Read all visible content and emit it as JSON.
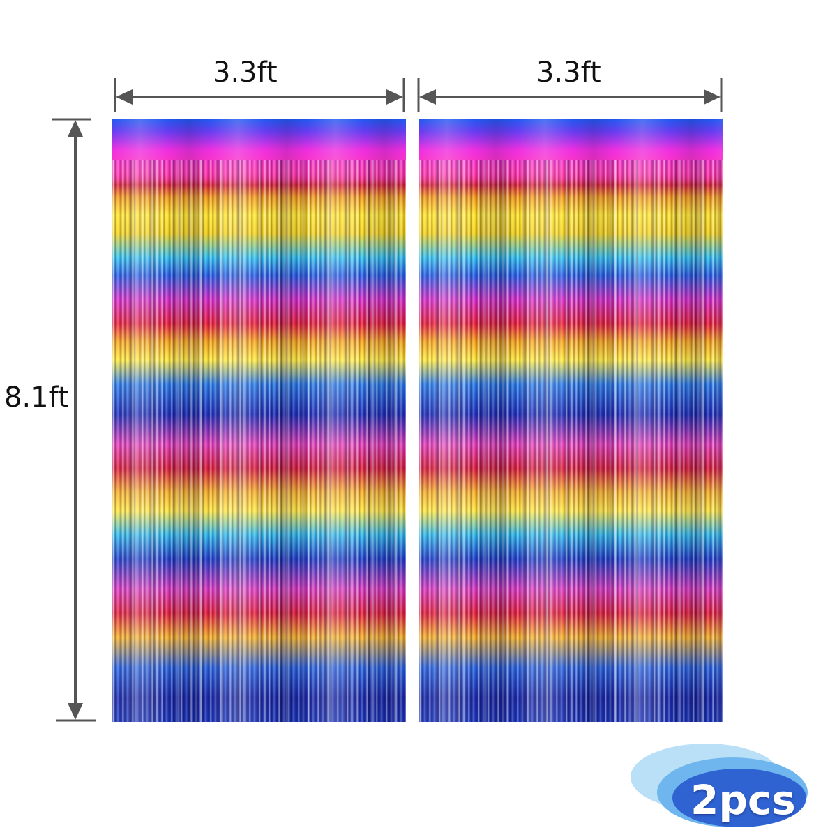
{
  "dimensions": {
    "width_left": "3.3ft",
    "width_right": "3.3ft",
    "height": "8.1ft"
  },
  "badge": {
    "text": "2pcs",
    "colors": {
      "outer": "#a9d8f5",
      "mid": "#6fb6ee",
      "inner": "#2f63d2"
    }
  },
  "colors": {
    "arrow": "#555555",
    "label": "#111111",
    "background": "#ffffff"
  },
  "curtains": [
    {
      "name": "rainbow foil fringe curtain"
    },
    {
      "name": "rainbow foil fringe curtain"
    }
  ]
}
